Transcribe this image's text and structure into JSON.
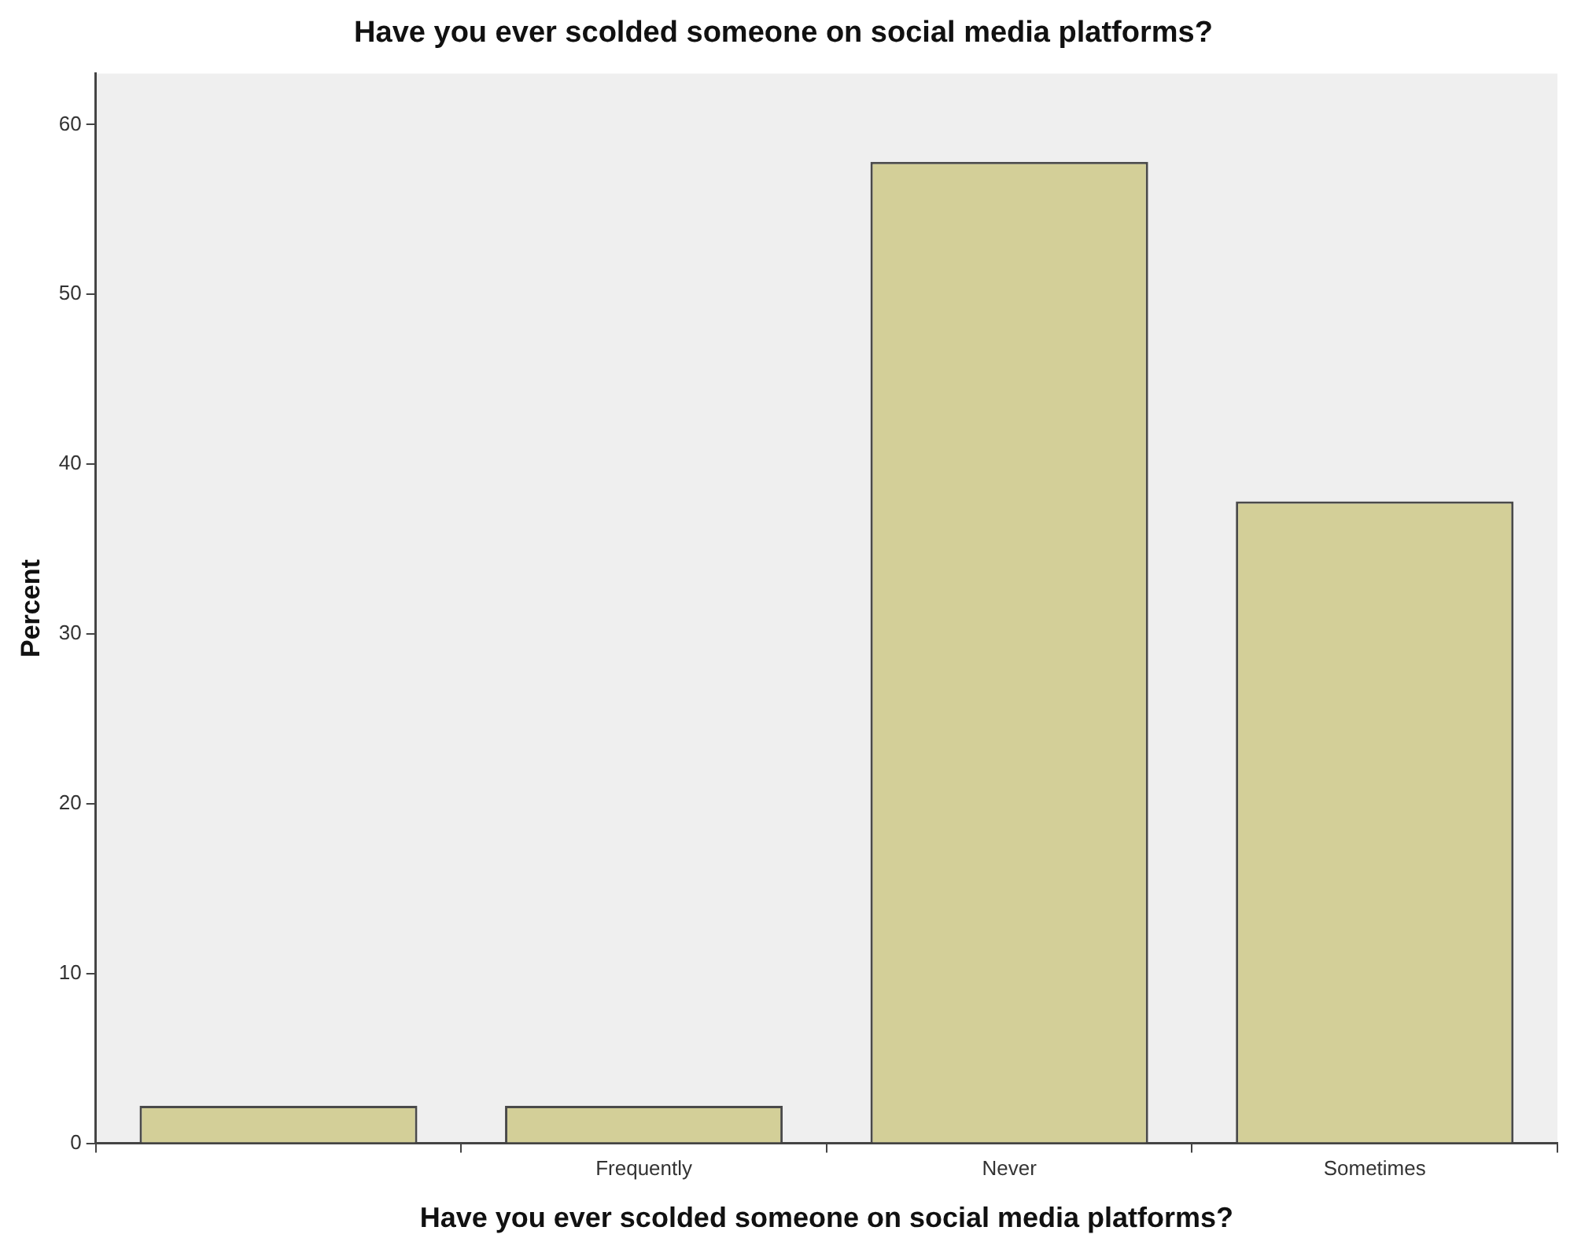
{
  "chart_data": {
    "type": "bar",
    "title": "Have you ever scolded someone on social media platforms?",
    "xlabel": "Have you ever scolded someone on social media platforms?",
    "ylabel": "Percent",
    "categories": [
      null,
      "Frequently",
      "Never",
      "Sometimes"
    ],
    "values": [
      2.2,
      2.2,
      57.8,
      37.8
    ],
    "color": "#d3cf98",
    "ylim": [
      0,
      63
    ],
    "yticks": [
      0,
      10,
      20,
      30,
      40,
      50,
      60
    ],
    "grid": false,
    "legend": false
  }
}
